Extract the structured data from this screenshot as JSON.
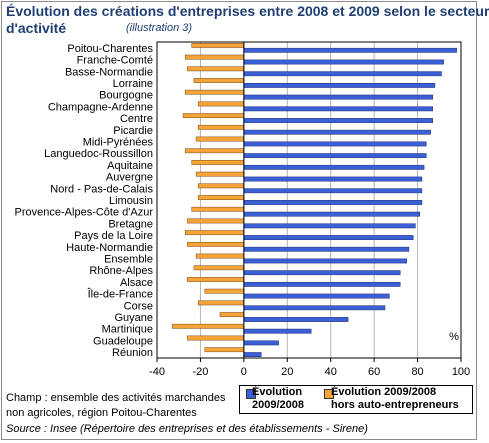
{
  "header": {
    "title_line1": "Évolution des créations d'entreprises entre 2008 et 2009 selon le secteur",
    "title_line2": "d'activité",
    "subtitle": "(illustration 3)"
  },
  "chart_data": {
    "type": "bar",
    "orientation": "horizontal",
    "categories": [
      "Poitou-Charentes",
      "Franche-Comté",
      "Basse-Normandie",
      "Lorraine",
      "Bourgogne",
      "Champagne-Ardenne",
      "Centre",
      "Picardie",
      "Midi-Pyrénées",
      "Languedoc-Roussillon",
      "Aquitaine",
      "Auvergne",
      "Nord - Pas-de-Calais",
      "Limousin",
      "Provence-Alpes-Côte d'Azur",
      "Bretagne",
      "Pays de la Loire",
      "Haute-Normandie",
      "Ensemble",
      "Rhône-Alpes",
      "Alsace",
      "Île-de-France",
      "Corse",
      "Guyane",
      "Martinique",
      "Guadeloupe",
      "Réunion"
    ],
    "series": [
      {
        "name": "Évolution 2009/2008",
        "color": "#3b5fd4",
        "values": [
          98,
          92,
          91,
          88,
          87,
          87,
          87,
          86,
          84,
          84,
          83,
          82,
          82,
          82,
          81,
          79,
          78,
          76,
          75,
          72,
          72,
          67,
          65,
          48,
          31,
          16,
          8
        ]
      },
      {
        "name": "Évolution 2009/2008 hors auto-entrepreneurs",
        "color": "#f5a43a",
        "values": [
          -24,
          -27,
          -26,
          -23,
          -27,
          -21,
          -28,
          -21,
          -22,
          -27,
          -24,
          -22,
          -21,
          -21,
          -24,
          -26,
          -27,
          -26,
          -22,
          -23,
          -26,
          -18,
          -21,
          -11,
          -33,
          -26,
          -18
        ]
      }
    ],
    "xlim": [
      -40,
      100
    ],
    "xticks": [
      "-40",
      "-20",
      "0",
      "20",
      "40",
      "60",
      "80",
      "100"
    ],
    "unit_label": "%",
    "grid": "vertical",
    "legend_position": "bottom-right"
  },
  "legend": {
    "item1_line1": "Évolution",
    "item1_line2": "2009/2008",
    "item2_line1": "Évolution 2009/2008",
    "item2_line2": "hors auto-entrepreneurs"
  },
  "notes": {
    "line1": "Champ : ensemble des activités marchandes",
    "line2": "non agricoles, région Poitou-Charentes",
    "source": "Source : Insee (Répertoire des entreprises et des établissements - Sirene)"
  }
}
